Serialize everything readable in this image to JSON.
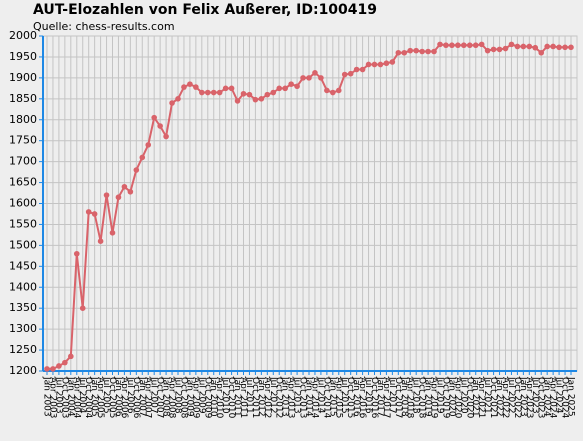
{
  "chart_data": {
    "type": "line",
    "title": "AUT-Elozahlen von Felix Außerer, ID:100419",
    "subtitle": "Quelle: chess-results.com",
    "categories": [
      "Jan 2003",
      "Apr 2003",
      "Jul 2003",
      "Oct 2003",
      "Jan 2004",
      "Apr 2004",
      "Jul 2004",
      "Oct 2004",
      "Jan 2005",
      "Apr 2005",
      "Jul 2005",
      "Oct 2005",
      "Jan 2006",
      "Apr 2006",
      "Jul 2006",
      "Oct 2006",
      "Jan 2007",
      "Apr 2007",
      "Jul 2007",
      "Oct 2007",
      "Jan 2008",
      "Apr 2008",
      "Jul 2008",
      "Oct 2008",
      "Jan 2009",
      "Apr 2009",
      "Jul 2009",
      "Oct 2009",
      "Jan 2010",
      "Apr 2010",
      "Jul 2010",
      "Oct 2010",
      "Jan 2011",
      "Apr 2011",
      "Jul 2011",
      "Oct 2011",
      "Jan 2012",
      "Apr 2012",
      "Jul 2012",
      "Oct 2012",
      "Jan 2013",
      "Apr 2013",
      "Jul 2013",
      "Oct 2013",
      "Jan 2014",
      "Apr 2014",
      "Jul 2014",
      "Oct 2014",
      "Jan 2015",
      "Apr 2015",
      "Jul 2015",
      "Oct 2015",
      "Jan 2016",
      "Apr 2016",
      "Jul 2016",
      "Oct 2016",
      "Jan 2017",
      "Apr 2017",
      "Jul 2017",
      "Oct 2017",
      "Jan 2018",
      "Apr 2018",
      "Jul 2018",
      "Oct 2018",
      "Jan 2019",
      "Apr 2019",
      "Jul 2019",
      "Oct 2019",
      "Jan 2020",
      "Apr 2020",
      "Jul 2020",
      "Oct 2020",
      "Jan 2021",
      "Apr 2021",
      "Jul 2021",
      "Oct 2021",
      "Jan 2022",
      "Apr 2022",
      "Jul 2022",
      "Oct 2022",
      "Jan 2023",
      "Apr 2023",
      "Jul 2023",
      "Oct 2023",
      "Jan 2024",
      "Apr 2024",
      "Jul 2024",
      "Oct 2024",
      "Jan 2025"
    ],
    "series": [
      {
        "color": "#d9636a",
        "values": [
          1205,
          1205,
          1212,
          1220,
          1235,
          1480,
          1350,
          1580,
          1575,
          1510,
          1620,
          1530,
          1615,
          1640,
          1628,
          1680,
          1710,
          1740,
          1805,
          1785,
          1760,
          1840,
          1850,
          1878,
          1885,
          1878,
          1865,
          1865,
          1865,
          1865,
          1875,
          1875,
          1845,
          1862,
          1860,
          1848,
          1850,
          1860,
          1865,
          1875,
          1875,
          1885,
          1880,
          1900,
          1900,
          1912,
          1900,
          1870,
          1865,
          1870,
          1908,
          1910,
          1920,
          1920,
          1932,
          1932,
          1932,
          1935,
          1938,
          1960,
          1960,
          1965,
          1965,
          1963,
          1963,
          1963,
          1980,
          1978,
          1978,
          1978,
          1978,
          1978,
          1978,
          1980,
          1965,
          1968,
          1968,
          1970,
          1980,
          1975,
          1975,
          1975,
          1972,
          1960,
          1975,
          1975,
          1973,
          1973,
          1973
        ]
      }
    ],
    "ylim": [
      1200,
      2000
    ],
    "yticks": [
      1200,
      1250,
      1300,
      1350,
      1400,
      1450,
      1500,
      1550,
      1600,
      1650,
      1700,
      1750,
      1800,
      1850,
      1900,
      1950,
      2000
    ],
    "grid": true
  }
}
